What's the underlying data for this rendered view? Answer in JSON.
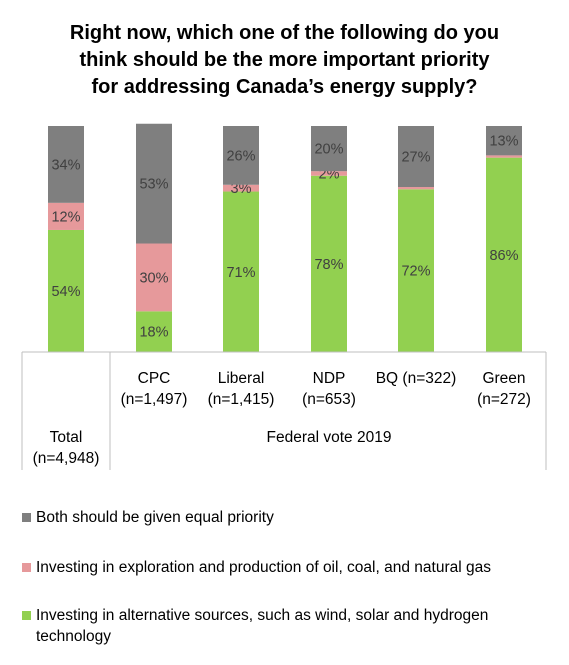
{
  "chart_data": {
    "type": "bar",
    "stacked": true,
    "title_lines": [
      "Right now, which one of the following do you",
      "think should be the more important priority",
      "for addressing Canada’s energy supply?"
    ],
    "categories": [
      {
        "label_lines": [
          "Total",
          "(n=4,948)"
        ]
      },
      {
        "label_lines": [
          "CPC",
          "(n=1,497)"
        ]
      },
      {
        "label_lines": [
          "Liberal",
          "(n=1,415)"
        ]
      },
      {
        "label_lines": [
          "NDP",
          "(n=653)"
        ]
      },
      {
        "label_lines": [
          "BQ (n=322)"
        ]
      },
      {
        "label_lines": [
          "Green",
          "(n=272)"
        ]
      }
    ],
    "group_label": "Federal vote 2019",
    "series": [
      {
        "name": "Investing in alternative sources, such as wind, solar and hydrogen technology",
        "color": "#92d050",
        "values": [
          54,
          18,
          71,
          78,
          72,
          86
        ],
        "labels": [
          "54%",
          "18%",
          "71%",
          "78%",
          "72%",
          "86%"
        ]
      },
      {
        "name": "Investing in exploration and production of oil, coal, and natural gas",
        "color": "#e6999b",
        "values": [
          12,
          30,
          3,
          2,
          1,
          1
        ],
        "labels": [
          "12%",
          "30%",
          "3%",
          "2%",
          "",
          ""
        ]
      },
      {
        "name": "Both should be given equal priority",
        "color": "#7f7f7f",
        "values": [
          34,
          53,
          26,
          20,
          27,
          13
        ],
        "labels": [
          "34%",
          "53%",
          "26%",
          "20%",
          "27%",
          "13%"
        ]
      }
    ],
    "legend_order": [
      2,
      1,
      0
    ],
    "legend_placement": "bottom",
    "ylim": [
      0,
      100
    ],
    "grid": false
  }
}
